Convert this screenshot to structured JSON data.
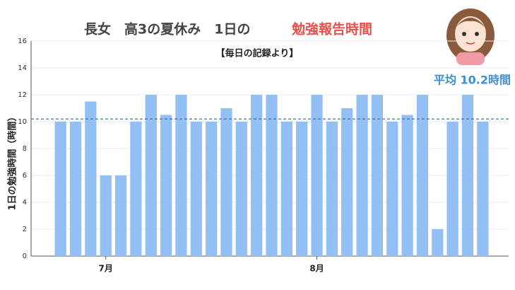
{
  "chart_data": {
    "type": "bar",
    "title_main": "長女　高3の夏休み　1日の",
    "title_highlight": "勉強報告時間",
    "subtitle": "【毎日の記録より】",
    "ylabel": "1日の勉強時間（時間）",
    "categories": [
      null,
      null,
      null,
      "7月",
      null,
      null,
      null,
      null,
      null,
      null,
      null,
      null,
      null,
      null,
      null,
      null,
      null,
      "8月",
      null,
      null,
      null,
      null,
      null,
      null,
      null,
      null,
      null,
      null,
      null
    ],
    "values": [
      10,
      10,
      11.5,
      6,
      6,
      10,
      12,
      10.5,
      12,
      10,
      10,
      11,
      10,
      12,
      12,
      10,
      10,
      12,
      10,
      11,
      12,
      12,
      10,
      10.5,
      12,
      2,
      10,
      12,
      10
    ],
    "color": "#93bff5",
    "mean": 10.2,
    "mean_label": "平均 10.2時間",
    "ylim": [
      0,
      16
    ],
    "yticks": [
      0,
      2,
      4,
      6,
      8,
      10,
      12,
      14,
      16
    ],
    "grid": true
  }
}
